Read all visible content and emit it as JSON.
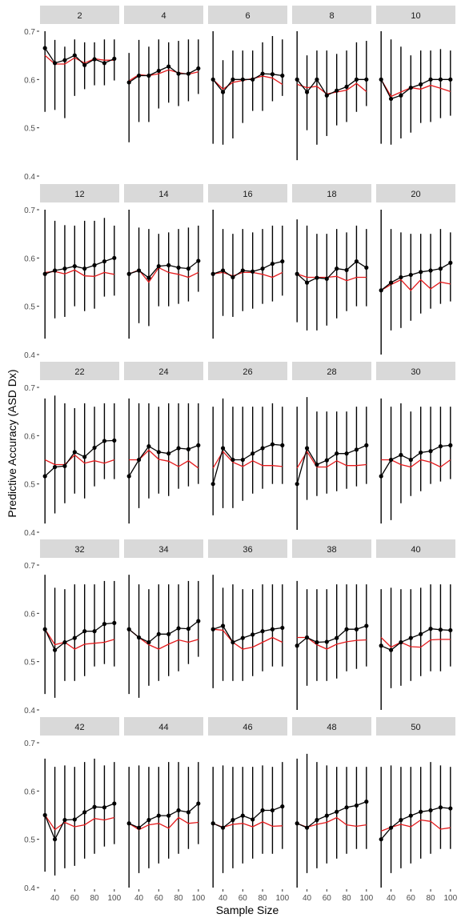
{
  "chart_data": {
    "type": "line",
    "xlabel": "Sample Size",
    "ylabel": "Predictive Accuracy (ASD Dx)",
    "x": [
      30,
      40,
      50,
      60,
      70,
      80,
      90,
      100
    ],
    "x_ticks": [
      "40",
      "60",
      "80",
      "100"
    ],
    "xlim": [
      25,
      105
    ],
    "ylim": [
      0.4,
      0.7
    ],
    "y_ticks": [
      "0.4",
      "0.5",
      "0.6",
      "0.7"
    ],
    "grid": false,
    "colors": {
      "point_series": "#000000",
      "line_series": "#e41a1c",
      "strip": "#d9d9d9"
    },
    "panels": [
      {
        "label": "2",
        "black": [
          0.665,
          0.634,
          0.64,
          0.65,
          0.63,
          0.642,
          0.634,
          0.643
        ],
        "red": [
          0.65,
          0.632,
          0.632,
          0.645,
          0.634,
          0.643,
          0.64,
          0.64
        ],
        "lo": [
          0.533,
          0.537,
          0.52,
          0.566,
          0.58,
          0.588,
          0.588,
          0.598
        ],
        "hi": [
          0.7,
          0.682,
          0.668,
          0.683,
          0.677,
          0.677,
          0.683,
          0.683
        ]
      },
      {
        "label": "4",
        "black": [
          0.594,
          0.608,
          0.608,
          0.618,
          0.627,
          0.612,
          0.612,
          0.623
        ],
        "red": [
          0.597,
          0.61,
          0.608,
          0.612,
          0.62,
          0.614,
          0.611,
          0.616
        ],
        "lo": [
          0.47,
          0.512,
          0.512,
          0.54,
          0.552,
          0.545,
          0.555,
          0.57
        ],
        "hi": [
          0.655,
          0.682,
          0.668,
          0.683,
          0.677,
          0.68,
          0.683,
          0.683
        ]
      },
      {
        "label": "6",
        "black": [
          0.6,
          0.574,
          0.6,
          0.6,
          0.6,
          0.612,
          0.611,
          0.608
        ],
        "red": [
          0.6,
          0.58,
          0.594,
          0.598,
          0.602,
          0.607,
          0.603,
          0.59
        ],
        "lo": [
          0.467,
          0.465,
          0.478,
          0.51,
          0.535,
          0.535,
          0.555,
          0.566
        ],
        "hi": [
          0.7,
          0.64,
          0.66,
          0.66,
          0.66,
          0.677,
          0.69,
          0.683
        ]
      },
      {
        "label": "8",
        "black": [
          0.6,
          0.574,
          0.6,
          0.567,
          0.577,
          0.585,
          0.6,
          0.6
        ],
        "red": [
          0.59,
          0.583,
          0.586,
          0.57,
          0.574,
          0.578,
          0.592,
          0.575
        ],
        "lo": [
          0.433,
          0.495,
          0.465,
          0.483,
          0.505,
          0.512,
          0.533,
          0.545
        ],
        "hi": [
          0.7,
          0.65,
          0.66,
          0.66,
          0.653,
          0.66,
          0.677,
          0.68
        ]
      },
      {
        "label": "10",
        "black": [
          0.6,
          0.56,
          0.567,
          0.583,
          0.59,
          0.6,
          0.6,
          0.6
        ],
        "red": [
          0.6,
          0.565,
          0.574,
          0.583,
          0.58,
          0.588,
          0.582,
          0.575
        ],
        "lo": [
          0.467,
          0.465,
          0.478,
          0.49,
          0.51,
          0.512,
          0.52,
          0.525
        ],
        "hi": [
          0.7,
          0.683,
          0.668,
          0.65,
          0.66,
          0.66,
          0.663,
          0.66
        ]
      },
      {
        "label": "12",
        "black": [
          0.567,
          0.574,
          0.578,
          0.583,
          0.578,
          0.585,
          0.593,
          0.6
        ],
        "red": [
          0.57,
          0.572,
          0.567,
          0.575,
          0.563,
          0.562,
          0.57,
          0.566
        ],
        "lo": [
          0.433,
          0.475,
          0.478,
          0.5,
          0.49,
          0.495,
          0.52,
          0.522
        ],
        "hi": [
          0.7,
          0.677,
          0.668,
          0.667,
          0.677,
          0.677,
          0.683,
          0.667
        ]
      },
      {
        "label": "14",
        "black": [
          0.567,
          0.574,
          0.559,
          0.583,
          0.585,
          0.58,
          0.578,
          0.594
        ],
        "red": [
          0.567,
          0.575,
          0.55,
          0.58,
          0.57,
          0.566,
          0.56,
          0.57
        ],
        "lo": [
          0.433,
          0.465,
          0.459,
          0.5,
          0.5,
          0.505,
          0.51,
          0.53
        ],
        "hi": [
          0.7,
          0.663,
          0.66,
          0.65,
          0.653,
          0.66,
          0.663,
          0.667
        ]
      },
      {
        "label": "16",
        "black": [
          0.567,
          0.574,
          0.56,
          0.574,
          0.572,
          0.578,
          0.588,
          0.593
        ],
        "red": [
          0.567,
          0.57,
          0.563,
          0.57,
          0.57,
          0.566,
          0.56,
          0.57
        ],
        "lo": [
          0.433,
          0.48,
          0.478,
          0.49,
          0.495,
          0.505,
          0.51,
          0.522
        ],
        "hi": [
          0.7,
          0.66,
          0.65,
          0.66,
          0.653,
          0.66,
          0.667,
          0.667
        ]
      },
      {
        "label": "18",
        "black": [
          0.567,
          0.549,
          0.559,
          0.557,
          0.578,
          0.575,
          0.593,
          0.58
        ],
        "red": [
          0.567,
          0.56,
          0.56,
          0.56,
          0.562,
          0.553,
          0.56,
          0.56
        ],
        "lo": [
          0.467,
          0.45,
          0.45,
          0.46,
          0.475,
          0.49,
          0.5,
          0.5
        ],
        "hi": [
          0.68,
          0.667,
          0.65,
          0.65,
          0.66,
          0.653,
          0.667,
          0.66
        ]
      },
      {
        "label": "20",
        "black": [
          0.533,
          0.549,
          0.56,
          0.565,
          0.571,
          0.574,
          0.578,
          0.59
        ],
        "red": [
          0.533,
          0.545,
          0.555,
          0.533,
          0.555,
          0.536,
          0.55,
          0.546
        ],
        "lo": [
          0.4,
          0.45,
          0.455,
          0.47,
          0.485,
          0.495,
          0.505,
          0.51
        ],
        "hi": [
          0.7,
          0.66,
          0.653,
          0.65,
          0.65,
          0.65,
          0.66,
          0.653
        ]
      },
      {
        "label": "22",
        "black": [
          0.516,
          0.535,
          0.537,
          0.566,
          0.556,
          0.575,
          0.589,
          0.59
        ],
        "red": [
          0.55,
          0.54,
          0.54,
          0.56,
          0.543,
          0.548,
          0.543,
          0.55
        ],
        "lo": [
          0.418,
          0.439,
          0.46,
          0.48,
          0.47,
          0.495,
          0.51,
          0.51
        ],
        "hi": [
          0.677,
          0.683,
          0.667,
          0.657,
          0.667,
          0.66,
          0.667,
          0.667
        ]
      },
      {
        "label": "24",
        "black": [
          0.516,
          0.55,
          0.578,
          0.566,
          0.563,
          0.574,
          0.572,
          0.58
        ],
        "red": [
          0.55,
          0.55,
          0.57,
          0.551,
          0.547,
          0.536,
          0.548,
          0.533
        ],
        "lo": [
          0.418,
          0.45,
          0.47,
          0.48,
          0.475,
          0.49,
          0.495,
          0.5
        ],
        "hi": [
          0.677,
          0.667,
          0.667,
          0.66,
          0.667,
          0.667,
          0.667,
          0.667
        ]
      },
      {
        "label": "26",
        "black": [
          0.5,
          0.574,
          0.55,
          0.55,
          0.563,
          0.574,
          0.582,
          0.58
        ],
        "red": [
          0.533,
          0.567,
          0.545,
          0.536,
          0.548,
          0.538,
          0.538,
          0.536
        ],
        "lo": [
          0.435,
          0.45,
          0.45,
          0.465,
          0.48,
          0.49,
          0.5,
          0.5
        ],
        "hi": [
          0.66,
          0.677,
          0.66,
          0.66,
          0.66,
          0.66,
          0.667,
          0.66
        ]
      },
      {
        "label": "28",
        "black": [
          0.5,
          0.574,
          0.54,
          0.549,
          0.563,
          0.563,
          0.571,
          0.58
        ],
        "red": [
          0.533,
          0.567,
          0.535,
          0.535,
          0.548,
          0.538,
          0.538,
          0.54
        ],
        "lo": [
          0.405,
          0.467,
          0.475,
          0.48,
          0.485,
          0.49,
          0.495,
          0.5
        ],
        "hi": [
          0.66,
          0.68,
          0.65,
          0.65,
          0.65,
          0.65,
          0.66,
          0.66
        ]
      },
      {
        "label": "30",
        "black": [
          0.516,
          0.55,
          0.56,
          0.55,
          0.565,
          0.568,
          0.578,
          0.58
        ],
        "red": [
          0.55,
          0.55,
          0.54,
          0.535,
          0.55,
          0.545,
          0.535,
          0.55
        ],
        "lo": [
          0.418,
          0.425,
          0.46,
          0.475,
          0.485,
          0.5,
          0.505,
          0.51
        ],
        "hi": [
          0.677,
          0.66,
          0.667,
          0.65,
          0.66,
          0.66,
          0.66,
          0.66
        ]
      },
      {
        "label": "32",
        "black": [
          0.567,
          0.524,
          0.54,
          0.549,
          0.563,
          0.563,
          0.578,
          0.58
        ],
        "red": [
          0.567,
          0.535,
          0.54,
          0.526,
          0.536,
          0.538,
          0.54,
          0.546
        ],
        "lo": [
          0.433,
          0.425,
          0.46,
          0.46,
          0.47,
          0.49,
          0.495,
          0.49
        ],
        "hi": [
          0.68,
          0.653,
          0.65,
          0.66,
          0.66,
          0.66,
          0.667,
          0.667
        ]
      },
      {
        "label": "34",
        "black": [
          0.567,
          0.55,
          0.54,
          0.557,
          0.557,
          0.569,
          0.568,
          0.584
        ],
        "red": [
          0.567,
          0.55,
          0.535,
          0.526,
          0.536,
          0.545,
          0.54,
          0.546
        ],
        "lo": [
          0.433,
          0.425,
          0.45,
          0.46,
          0.47,
          0.48,
          0.495,
          0.51
        ],
        "hi": [
          0.68,
          0.66,
          0.65,
          0.66,
          0.66,
          0.66,
          0.667,
          0.667
        ]
      },
      {
        "label": "36",
        "black": [
          0.567,
          0.574,
          0.54,
          0.549,
          0.556,
          0.563,
          0.567,
          0.57
        ],
        "red": [
          0.567,
          0.565,
          0.54,
          0.526,
          0.53,
          0.54,
          0.55,
          0.54
        ],
        "lo": [
          0.445,
          0.46,
          0.46,
          0.46,
          0.47,
          0.48,
          0.49,
          0.49
        ],
        "hi": [
          0.68,
          0.653,
          0.66,
          0.65,
          0.65,
          0.66,
          0.66,
          0.66
        ]
      },
      {
        "label": "38",
        "black": [
          0.533,
          0.55,
          0.54,
          0.541,
          0.549,
          0.567,
          0.567,
          0.574
        ],
        "red": [
          0.55,
          0.55,
          0.535,
          0.526,
          0.536,
          0.541,
          0.544,
          0.545
        ],
        "lo": [
          0.4,
          0.45,
          0.46,
          0.46,
          0.465,
          0.48,
          0.485,
          0.49
        ],
        "hi": [
          0.667,
          0.65,
          0.65,
          0.65,
          0.66,
          0.66,
          0.66,
          0.66
        ]
      },
      {
        "label": "40",
        "black": [
          0.533,
          0.524,
          0.54,
          0.549,
          0.557,
          0.568,
          0.566,
          0.565
        ],
        "red": [
          0.55,
          0.53,
          0.54,
          0.531,
          0.53,
          0.545,
          0.546,
          0.546
        ],
        "lo": [
          0.4,
          0.445,
          0.45,
          0.46,
          0.47,
          0.48,
          0.48,
          0.49
        ],
        "hi": [
          0.65,
          0.653,
          0.65,
          0.65,
          0.653,
          0.66,
          0.66,
          0.66
        ]
      },
      {
        "label": "42",
        "black": [
          0.55,
          0.5,
          0.54,
          0.541,
          0.556,
          0.567,
          0.566,
          0.574
        ],
        "red": [
          0.55,
          0.52,
          0.535,
          0.526,
          0.53,
          0.543,
          0.54,
          0.545
        ],
        "lo": [
          0.433,
          0.425,
          0.44,
          0.445,
          0.46,
          0.47,
          0.485,
          0.49
        ],
        "hi": [
          0.667,
          0.65,
          0.653,
          0.65,
          0.66,
          0.667,
          0.653,
          0.66
        ]
      },
      {
        "label": "44",
        "black": [
          0.533,
          0.524,
          0.54,
          0.549,
          0.549,
          0.56,
          0.556,
          0.574
        ],
        "red": [
          0.533,
          0.52,
          0.53,
          0.533,
          0.523,
          0.545,
          0.533,
          0.535
        ],
        "lo": [
          0.4,
          0.43,
          0.44,
          0.45,
          0.46,
          0.47,
          0.48,
          0.49
        ],
        "hi": [
          0.65,
          0.653,
          0.65,
          0.65,
          0.66,
          0.66,
          0.65,
          0.66
        ]
      },
      {
        "label": "46",
        "black": [
          0.533,
          0.524,
          0.54,
          0.549,
          0.541,
          0.56,
          0.56,
          0.568
        ],
        "red": [
          0.533,
          0.525,
          0.531,
          0.533,
          0.526,
          0.536,
          0.527,
          0.528
        ],
        "lo": [
          0.4,
          0.43,
          0.44,
          0.45,
          0.46,
          0.47,
          0.47,
          0.48
        ],
        "hi": [
          0.65,
          0.653,
          0.65,
          0.65,
          0.65,
          0.653,
          0.65,
          0.66
        ]
      },
      {
        "label": "48",
        "black": [
          0.533,
          0.524,
          0.54,
          0.549,
          0.557,
          0.566,
          0.57,
          0.578
        ],
        "red": [
          0.533,
          0.525,
          0.531,
          0.535,
          0.545,
          0.53,
          0.527,
          0.53
        ],
        "lo": [
          0.4,
          0.43,
          0.44,
          0.45,
          0.46,
          0.47,
          0.48,
          0.48
        ],
        "hi": [
          0.667,
          0.677,
          0.66,
          0.653,
          0.65,
          0.65,
          0.65,
          0.65
        ]
      },
      {
        "label": "50",
        "black": [
          0.5,
          0.524,
          0.54,
          0.549,
          0.557,
          0.56,
          0.566,
          0.564
        ],
        "red": [
          0.517,
          0.525,
          0.531,
          0.526,
          0.54,
          0.537,
          0.521,
          0.524
        ],
        "lo": [
          0.4,
          0.43,
          0.44,
          0.45,
          0.46,
          0.47,
          0.48,
          0.48
        ],
        "hi": [
          0.65,
          0.653,
          0.65,
          0.65,
          0.65,
          0.66,
          0.653,
          0.65
        ]
      }
    ]
  }
}
